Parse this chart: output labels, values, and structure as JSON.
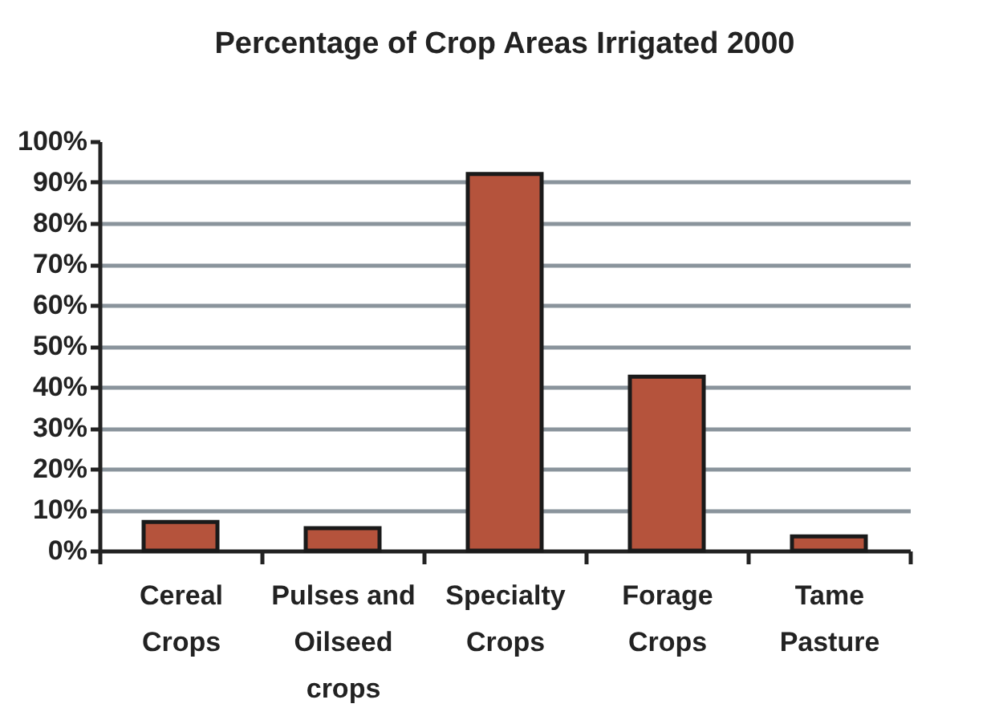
{
  "chart_data": {
    "type": "bar",
    "title": "Percentage of Crop Areas Irrigated 2000",
    "categories": [
      "Cereal\nCrops",
      "Pulses and\nOilseed\ncrops",
      "Specialty\nCrops",
      "Forage\nCrops",
      "Tame\nPasture"
    ],
    "values": [
      7,
      5.5,
      92,
      42.5,
      3.5
    ],
    "color": "#b5533c",
    "ylim": [
      0,
      100
    ],
    "yticks": [
      {
        "value": 0,
        "label": "0%"
      },
      {
        "value": 10,
        "label": "10%"
      },
      {
        "value": 20,
        "label": "20%"
      },
      {
        "value": 30,
        "label": "30%"
      },
      {
        "value": 40,
        "label": "40%"
      },
      {
        "value": 50,
        "label": "50%"
      },
      {
        "value": 60,
        "label": "60%"
      },
      {
        "value": 70,
        "label": "70%"
      },
      {
        "value": 80,
        "label": "80%"
      },
      {
        "value": 90,
        "label": "90%"
      },
      {
        "value": 100,
        "label": "100%"
      }
    ],
    "grid": "y"
  }
}
